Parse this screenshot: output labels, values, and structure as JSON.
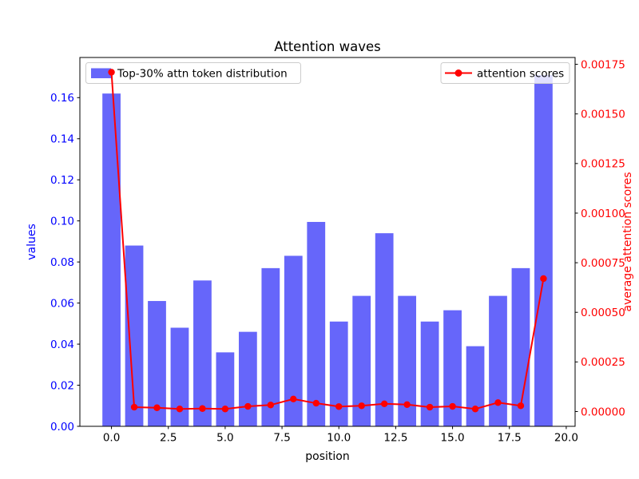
{
  "chart_data": {
    "type": "bar",
    "subtype": "bar+line combo, dual y-axis",
    "title": "Attention waves",
    "xlabel": "position",
    "ylabel_left": "values",
    "ylabel_right": "average attention scores",
    "background": "#ffffff",
    "grid": false,
    "x": [
      0,
      1,
      2,
      3,
      4,
      5,
      6,
      7,
      8,
      9,
      10,
      11,
      12,
      13,
      14,
      15,
      16,
      17,
      18,
      19
    ],
    "series": [
      {
        "name": "Top-30% attn token distribution",
        "type": "bar",
        "axis": "left",
        "color": "#6666fa",
        "values": [
          0.162,
          0.088,
          0.061,
          0.048,
          0.071,
          0.036,
          0.046,
          0.077,
          0.083,
          0.0995,
          0.051,
          0.0635,
          0.094,
          0.0635,
          0.051,
          0.0565,
          0.039,
          0.0635,
          0.077,
          0.171
        ]
      },
      {
        "name": "attention scores",
        "type": "line",
        "axis": "right",
        "color": "#ff0000",
        "marker": "circle",
        "values": [
          0.00171,
          2.2e-05,
          1.9e-05,
          1.3e-05,
          1.5e-05,
          1.3e-05,
          2.6e-05,
          3.3e-05,
          6.3e-05,
          4.2e-05,
          2.5e-05,
          2.9e-05,
          3.9e-05,
          3.5e-05,
          2.2e-05,
          2.6e-05,
          1.3e-05,
          4.5e-05,
          2.9e-05,
          0.00067
        ]
      }
    ],
    "xticks": {
      "values": [
        0,
        2.5,
        5,
        7.5,
        10,
        12.5,
        15,
        17.5,
        20
      ],
      "labels": [
        "0.0",
        "2.5",
        "5.0",
        "7.5",
        "10.0",
        "12.5",
        "15.0",
        "17.5",
        "20.0"
      ],
      "color": "#000000"
    },
    "yticks_left": {
      "values": [
        0,
        0.02,
        0.04,
        0.06,
        0.08,
        0.1,
        0.12,
        0.14,
        0.16
      ],
      "labels": [
        "0.00",
        "0.02",
        "0.04",
        "0.06",
        "0.08",
        "0.10",
        "0.12",
        "0.14",
        "0.16"
      ],
      "color": "#0000ff"
    },
    "yticks_right": {
      "values": [
        0,
        0.00025,
        0.0005,
        0.00075,
        0.001,
        0.00125,
        0.0015,
        0.00175
      ],
      "labels": [
        "0.00000",
        "0.00025",
        "0.00050",
        "0.00075",
        "0.00100",
        "0.00125",
        "0.00150",
        "0.00175"
      ],
      "color": "#ff0000"
    },
    "xlim": [
      -1.39,
      20.39
    ],
    "ylim_left": [
      0,
      0.17955
    ],
    "ylim_right": [
      -7.45e-05,
      0.0017845
    ],
    "bar_width_data": 0.8,
    "legend_left": {
      "label": "Top-30% attn token distribution",
      "position": "upper left"
    },
    "legend_right": {
      "label": "attention scores",
      "position": "upper right"
    }
  }
}
